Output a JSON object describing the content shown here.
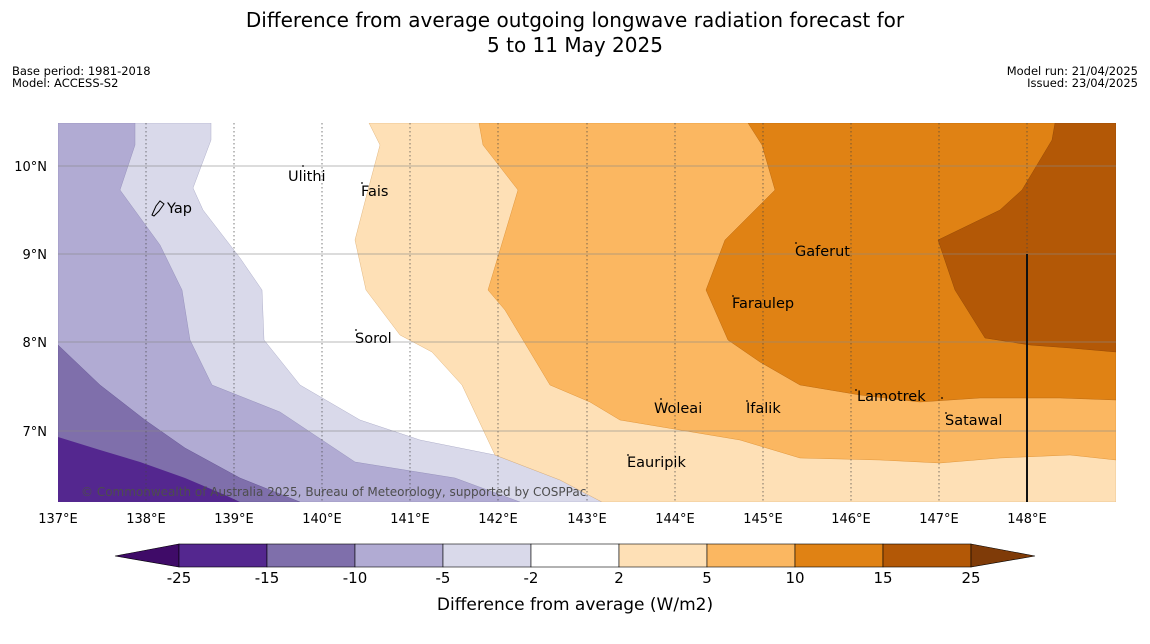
{
  "header": {
    "title_line1": "Difference from average outgoing longwave radiation forecast for",
    "title_line2": "5 to 11 May 2025"
  },
  "meta": {
    "base_period": "Base period: 1981-2018",
    "model": "Model: ACCESS-S2",
    "model_run": "Model run: 21/04/2025",
    "issued": "Issued: 23/04/2025"
  },
  "map": {
    "lon_ticks": [
      "137°E",
      "138°E",
      "139°E",
      "140°E",
      "141°E",
      "142°E",
      "143°E",
      "144°E",
      "145°E",
      "146°E",
      "147°E",
      "148°E"
    ],
    "lat_ticks": [
      "10°N",
      "9°N",
      "8°N",
      "7°N"
    ],
    "places": [
      {
        "name": "Ulithi"
      },
      {
        "name": "Fais"
      },
      {
        "name": "Yap"
      },
      {
        "name": "Gaferut"
      },
      {
        "name": "Faraulep"
      },
      {
        "name": "Sorol"
      },
      {
        "name": "Lamotrek"
      },
      {
        "name": "Woleai"
      },
      {
        "name": "Ifalik"
      },
      {
        "name": "Satawal"
      },
      {
        "name": "Eauripik"
      }
    ],
    "copyright": "© Commonwealth of Australia 2025, Bureau of Meteorology, supported by COSPPac"
  },
  "colorbar": {
    "label": "Difference from average (W/m2)",
    "ticks": [
      "-25",
      "-15",
      "-10",
      "-5",
      "-2",
      "2",
      "5",
      "10",
      "15",
      "25"
    ],
    "colors": {
      "below_-25": "#3f0b68",
      "-25_-15": "#54278f",
      "-15_-10": "#7f6fab",
      "-10_-5": "#b1abd3",
      "-5_-2": "#d9d9ea",
      "-2_2": "#ffffff",
      "2_5": "#fee0b6",
      "5_10": "#fbb761",
      "10_15": "#e08214",
      "15_25": "#b35806",
      "above_25": "#7f3b08"
    }
  }
}
